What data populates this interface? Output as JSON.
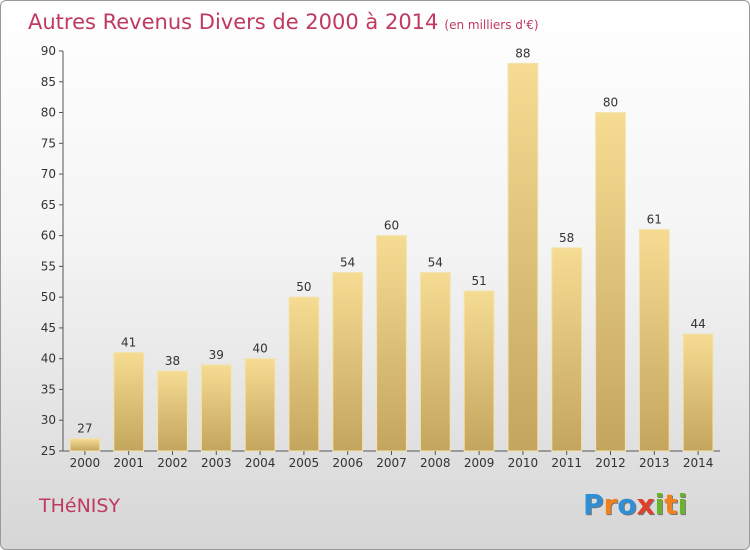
{
  "chart_data": {
    "type": "bar",
    "title": "Autres Revenus Divers de 2000 à 2014",
    "unit": "(en milliers d'€)",
    "categories": [
      "2000",
      "2001",
      "2002",
      "2003",
      "2004",
      "2005",
      "2006",
      "2007",
      "2008",
      "2009",
      "2010",
      "2011",
      "2012",
      "2013",
      "2014"
    ],
    "values": [
      27,
      41,
      38,
      39,
      40,
      50,
      54,
      60,
      54,
      51,
      88,
      58,
      80,
      61,
      44
    ],
    "ylim": [
      25,
      90
    ],
    "yticks": [
      25,
      30,
      35,
      40,
      45,
      50,
      55,
      60,
      65,
      70,
      75,
      80,
      85,
      90
    ],
    "grid": false,
    "bar_color": "#e6c97c"
  },
  "footer": {
    "commune": "THéNISY",
    "logo": [
      "P",
      "r",
      "o",
      "x",
      "i",
      "t",
      "i"
    ],
    "logo_colors": [
      "#2e8fd6",
      "#f0821e",
      "#2e8fd6",
      "#e0402a",
      "#6ab42d",
      "#f0821e",
      "#6ab42d"
    ]
  }
}
